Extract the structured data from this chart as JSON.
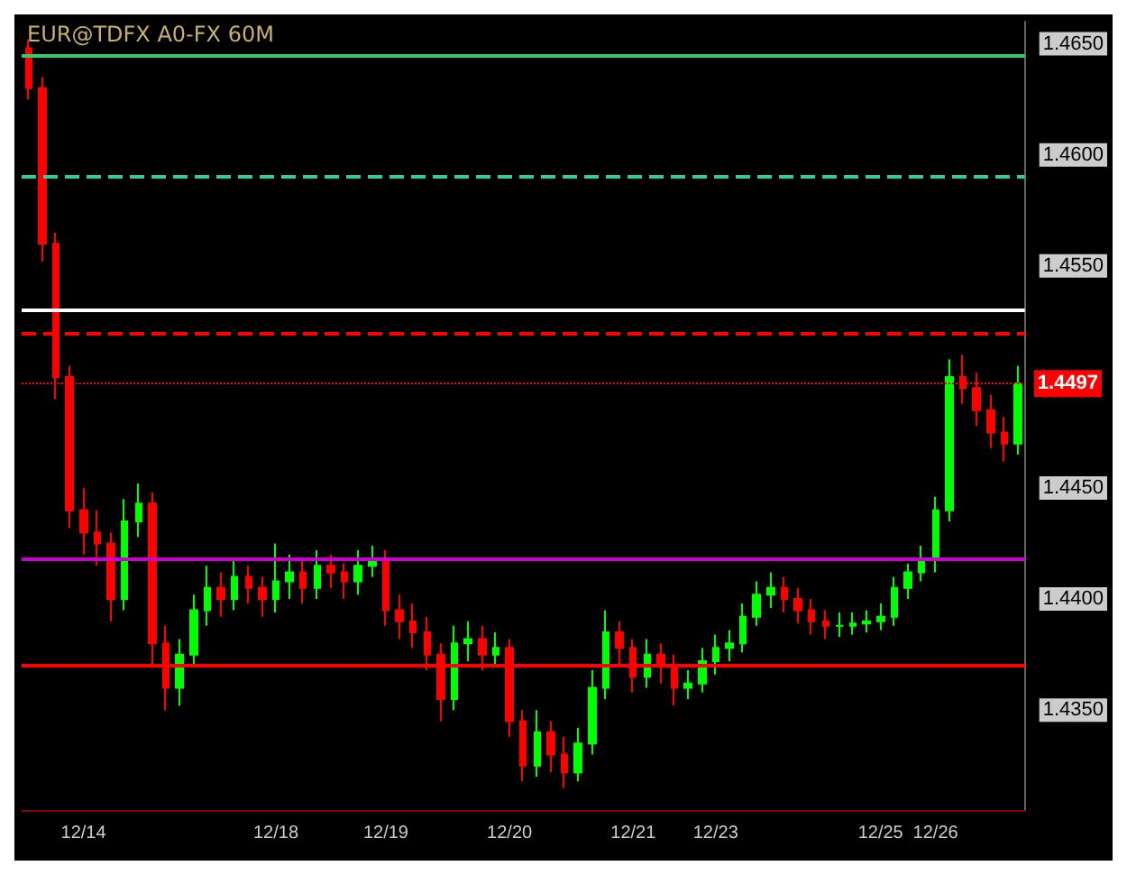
{
  "chart_data": {
    "type": "candlestick",
    "title": "EUR@TDFX A0-FX 60M",
    "categories": [
      null,
      null,
      null,
      null,
      "12/14",
      null,
      null,
      null,
      null,
      null,
      null,
      null,
      null,
      null,
      null,
      null,
      null,
      null,
      "12/18",
      null,
      null,
      null,
      null,
      null,
      null,
      null,
      "12/19",
      null,
      null,
      null,
      null,
      null,
      null,
      null,
      null,
      "12/20",
      null,
      null,
      null,
      null,
      null,
      null,
      null,
      null,
      "12/21",
      null,
      null,
      null,
      null,
      null,
      "12/23",
      null,
      null,
      null,
      null,
      null,
      null,
      null,
      null,
      null,
      null,
      null,
      "12/25",
      null,
      null,
      null,
      "12/26",
      null,
      null,
      null,
      null,
      null,
      null
    ],
    "ohlc": [
      [
        1.4648,
        1.4652,
        1.4625,
        1.463
      ],
      [
        1.463,
        1.4635,
        1.4552,
        1.456
      ],
      [
        1.456,
        1.4565,
        1.449,
        1.45
      ],
      [
        1.45,
        1.4505,
        1.4432,
        1.444
      ],
      [
        1.444,
        1.445,
        1.442,
        1.443
      ],
      [
        1.443,
        1.444,
        1.4415,
        1.4425
      ],
      [
        1.4425,
        1.443,
        1.439,
        1.44
      ],
      [
        1.44,
        1.4445,
        1.4395,
        1.4435
      ],
      [
        1.4435,
        1.4452,
        1.4428,
        1.4443
      ],
      [
        1.4443,
        1.4448,
        1.437,
        1.438
      ],
      [
        1.438,
        1.4388,
        1.435,
        1.436
      ],
      [
        1.436,
        1.4382,
        1.4352,
        1.4375
      ],
      [
        1.4375,
        1.4402,
        1.437,
        1.4395
      ],
      [
        1.4395,
        1.4415,
        1.4388,
        1.4405
      ],
      [
        1.4405,
        1.4412,
        1.4392,
        1.44
      ],
      [
        1.44,
        1.4418,
        1.4395,
        1.441
      ],
      [
        1.441,
        1.4415,
        1.4398,
        1.4405
      ],
      [
        1.4405,
        1.441,
        1.4392,
        1.44
      ],
      [
        1.44,
        1.4425,
        1.4394,
        1.4408
      ],
      [
        1.4408,
        1.442,
        1.44,
        1.4412
      ],
      [
        1.4412,
        1.4418,
        1.4398,
        1.4405
      ],
      [
        1.4405,
        1.4422,
        1.44,
        1.4415
      ],
      [
        1.4415,
        1.442,
        1.4405,
        1.4412
      ],
      [
        1.4412,
        1.4416,
        1.44,
        1.4408
      ],
      [
        1.4408,
        1.4422,
        1.4402,
        1.4415
      ],
      [
        1.4415,
        1.4424,
        1.441,
        1.4418
      ],
      [
        1.4418,
        1.4422,
        1.4388,
        1.4395
      ],
      [
        1.4395,
        1.4402,
        1.4382,
        1.439
      ],
      [
        1.439,
        1.4398,
        1.4378,
        1.4385
      ],
      [
        1.4385,
        1.4392,
        1.4368,
        1.4375
      ],
      [
        1.4375,
        1.438,
        1.4345,
        1.4355
      ],
      [
        1.4355,
        1.4388,
        1.435,
        1.438
      ],
      [
        1.438,
        1.439,
        1.4372,
        1.4382
      ],
      [
        1.4382,
        1.4388,
        1.4368,
        1.4375
      ],
      [
        1.4375,
        1.4385,
        1.437,
        1.4378
      ],
      [
        1.4378,
        1.4382,
        1.4338,
        1.4345
      ],
      [
        1.4345,
        1.435,
        1.4318,
        1.4325
      ],
      [
        1.4325,
        1.435,
        1.432,
        1.434
      ],
      [
        1.434,
        1.4345,
        1.4322,
        1.433
      ],
      [
        1.433,
        1.4338,
        1.4315,
        1.4322
      ],
      [
        1.4322,
        1.4342,
        1.4318,
        1.4335
      ],
      [
        1.4335,
        1.4368,
        1.433,
        1.436
      ],
      [
        1.436,
        1.4395,
        1.4355,
        1.4385
      ],
      [
        1.4385,
        1.439,
        1.437,
        1.4378
      ],
      [
        1.4378,
        1.4382,
        1.4358,
        1.4365
      ],
      [
        1.4365,
        1.4382,
        1.436,
        1.4375
      ],
      [
        1.4375,
        1.438,
        1.4362,
        1.437
      ],
      [
        1.437,
        1.4375,
        1.4352,
        1.436
      ],
      [
        1.436,
        1.4368,
        1.4355,
        1.4362
      ],
      [
        1.4362,
        1.4378,
        1.4358,
        1.4372
      ],
      [
        1.4372,
        1.4384,
        1.4366,
        1.4378
      ],
      [
        1.4378,
        1.4386,
        1.4372,
        1.438
      ],
      [
        1.438,
        1.4398,
        1.4376,
        1.4392
      ],
      [
        1.4392,
        1.4408,
        1.4388,
        1.4402
      ],
      [
        1.4402,
        1.4412,
        1.4396,
        1.4405
      ],
      [
        1.4405,
        1.441,
        1.4394,
        1.44
      ],
      [
        1.44,
        1.4405,
        1.4389,
        1.4395
      ],
      [
        1.4395,
        1.44,
        1.4384,
        1.439
      ],
      [
        1.439,
        1.4395,
        1.4382,
        1.4388
      ],
      [
        1.4388,
        1.4394,
        1.4383,
        1.4388
      ],
      [
        1.4388,
        1.4394,
        1.4384,
        1.4389
      ],
      [
        1.4389,
        1.4395,
        1.4385,
        1.439
      ],
      [
        1.439,
        1.4398,
        1.4386,
        1.4392
      ],
      [
        1.4392,
        1.441,
        1.4388,
        1.4405
      ],
      [
        1.4405,
        1.4416,
        1.44,
        1.4412
      ],
      [
        1.4412,
        1.4424,
        1.4408,
        1.4418
      ],
      [
        1.4418,
        1.4446,
        1.4412,
        1.444
      ],
      [
        1.444,
        1.4508,
        1.4435,
        1.45
      ],
      [
        1.45,
        1.451,
        1.4488,
        1.4495
      ],
      [
        1.4495,
        1.4502,
        1.4478,
        1.4485
      ],
      [
        1.4485,
        1.4492,
        1.4468,
        1.4475
      ],
      [
        1.4475,
        1.4482,
        1.4462,
        1.447
      ],
      [
        1.447,
        1.4505,
        1.4465,
        1.4497
      ]
    ],
    "colors": [
      "#ff0000",
      "#ff0000",
      "#ff0000",
      "#ff0000",
      "#ff0000",
      "#ff0000",
      "#ff0000",
      "#00ff00",
      "#00ff00",
      "#ff0000",
      "#ff0000",
      "#00ff00",
      "#00ff00",
      "#00ff00",
      "#ff0000",
      "#00ff00",
      "#ff0000",
      "#ff0000",
      "#00ff00",
      "#00ff00",
      "#ff0000",
      "#00ff00",
      "#ff0000",
      "#ff0000",
      "#00ff00",
      "#00ff00",
      "#ff0000",
      "#ff0000",
      "#ff0000",
      "#ff0000",
      "#ff0000",
      "#00ff00",
      "#00ff00",
      "#ff0000",
      "#00ff00",
      "#ff0000",
      "#ff0000",
      "#00ff00",
      "#ff0000",
      "#ff0000",
      "#00ff00",
      "#00ff00",
      "#00ff00",
      "#ff0000",
      "#ff0000",
      "#00ff00",
      "#ff0000",
      "#ff0000",
      "#00ff00",
      "#00ff00",
      "#00ff00",
      "#00ff00",
      "#00ff00",
      "#00ff00",
      "#00ff00",
      "#ff0000",
      "#ff0000",
      "#ff0000",
      "#ff0000",
      "#00ff00",
      "#00ff00",
      "#00ff00",
      "#00ff00",
      "#00ff00",
      "#00ff00",
      "#00ff00",
      "#00ff00",
      "#00ff00",
      "#ff0000",
      "#ff0000",
      "#ff0000",
      "#ff0000",
      "#00ff00"
    ],
    "ylim": [
      1.4305,
      1.466
    ],
    "yticks": [
      {
        "value": 1.435,
        "label": "1.4350"
      },
      {
        "value": 1.44,
        "label": "1.4400"
      },
      {
        "value": 1.445,
        "label": "1.4450"
      },
      {
        "value": 1.455,
        "label": "1.4550"
      },
      {
        "value": 1.46,
        "label": "1.4600"
      },
      {
        "value": 1.465,
        "label": "1.4650"
      }
    ],
    "ref_lines": [
      {
        "axis": "y",
        "value": 1.4645,
        "color": "#33cc66",
        "line_style": "solid"
      },
      {
        "axis": "y",
        "value": 1.459,
        "color": "#33cc99",
        "line_style": "dashed"
      },
      {
        "axis": "y",
        "value": 1.453,
        "color": "#ffffff",
        "line_style": "solid"
      },
      {
        "axis": "y",
        "value": 1.452,
        "color": "#ff0000",
        "line_style": "dashed"
      },
      {
        "axis": "y",
        "value": 1.4497,
        "label": "1.4497",
        "color": "#ff0000",
        "line_style": "dotted"
      },
      {
        "axis": "y",
        "value": 1.4418,
        "color": "#cc00cc",
        "line_style": "solid"
      },
      {
        "axis": "y",
        "value": 1.437,
        "color": "#ff0000",
        "line_style": "solid"
      }
    ],
    "grid": false
  }
}
